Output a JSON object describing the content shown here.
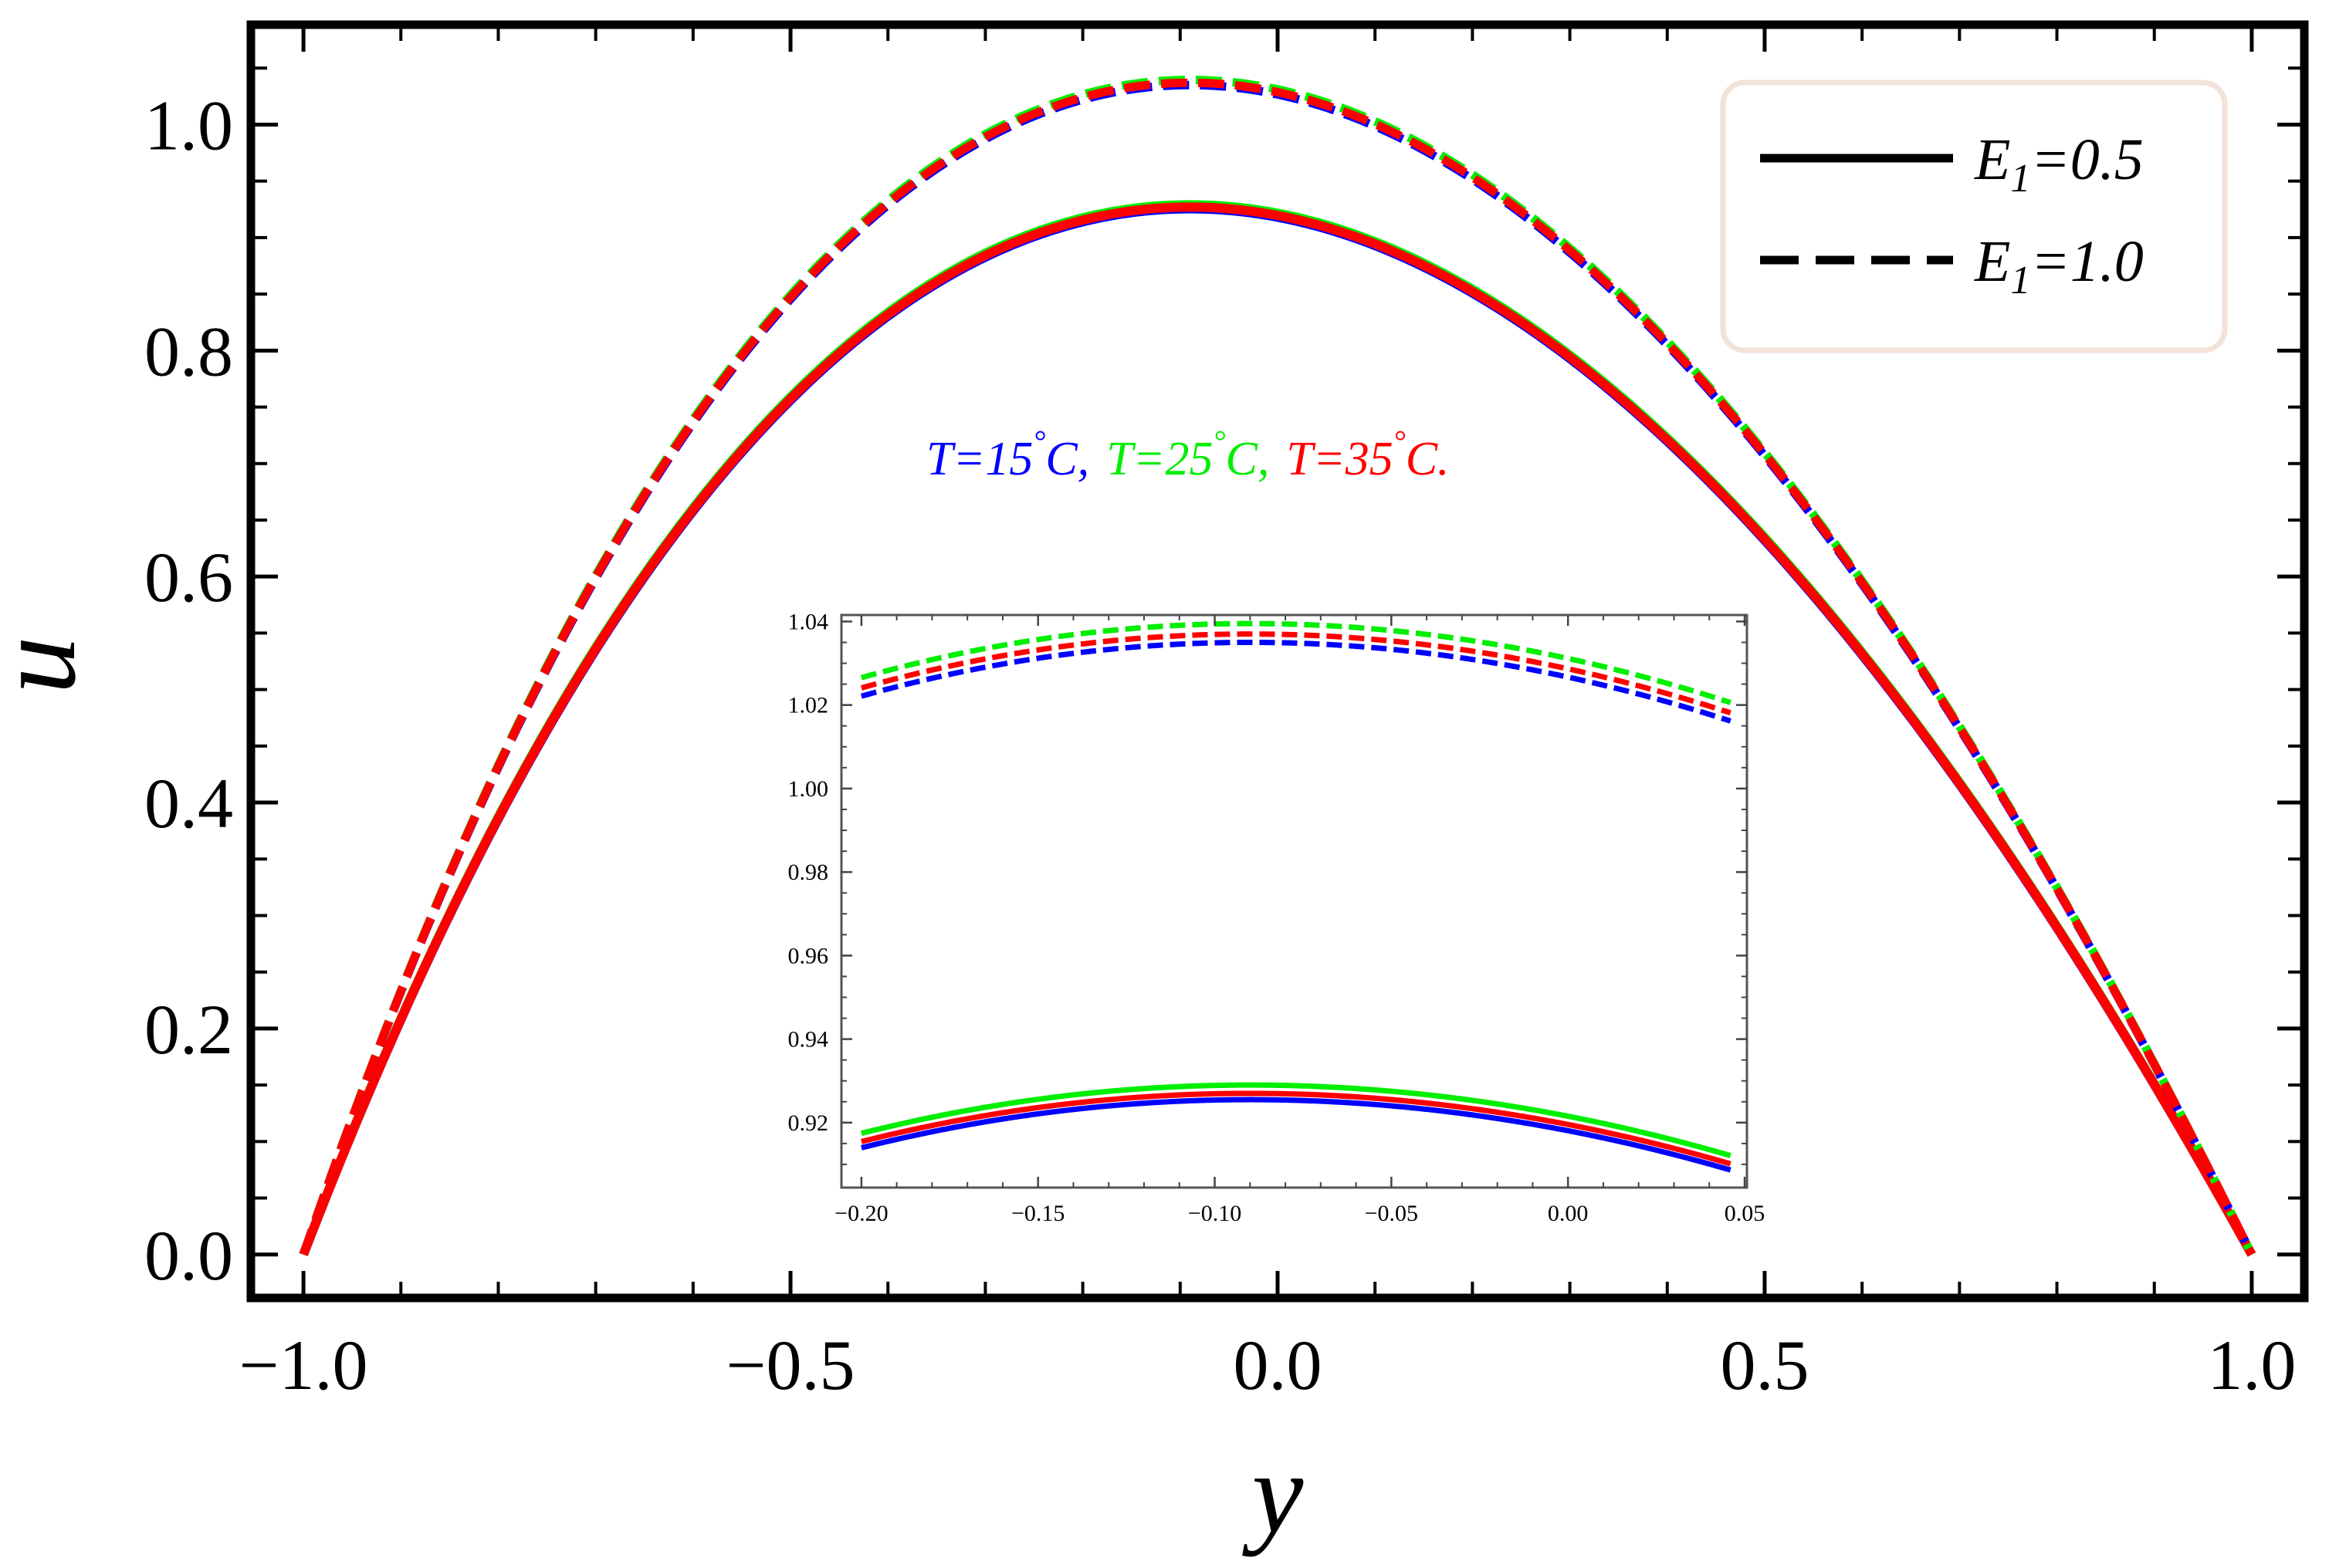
{
  "chart_data": {
    "type": "line",
    "title": "",
    "xlabel": "y",
    "ylabel": "u",
    "xlim": [
      -1.05,
      1.05
    ],
    "ylim": [
      -0.035,
      1.085
    ],
    "x_ticks": [
      -1.0,
      -0.5,
      0.0,
      0.5,
      1.0
    ],
    "x_tick_labels": [
      "−1.0",
      "−0.5",
      "0.0",
      "0.5",
      "1.0"
    ],
    "y_ticks": [
      0.0,
      0.2,
      0.4,
      0.6,
      0.8,
      1.0
    ],
    "y_tick_labels": [
      "0.0",
      "0.2",
      "0.4",
      "0.6",
      "0.8",
      "1.0"
    ],
    "grid": false,
    "curve_model": "u(y) = peak * (1 - y^2) / (1 + k*y), k chosen so the maximum sits at y ≈ -0.09",
    "peak_location_y": -0.09,
    "series": [
      {
        "name": "E1=0.5, T=15°C",
        "legend_group": "E1=0.5",
        "temperature": "T=15°C",
        "color": "#0000ff",
        "dash": "solid",
        "peak_u": 0.9255
      },
      {
        "name": "E1=0.5, T=25°C",
        "legend_group": "E1=0.5",
        "temperature": "T=25°C",
        "color": "#00ee00",
        "dash": "solid",
        "peak_u": 0.929
      },
      {
        "name": "E1=0.5, T=35°C",
        "legend_group": "E1=0.5",
        "temperature": "T=35°C",
        "color": "#ff0000",
        "dash": "solid",
        "peak_u": 0.927
      },
      {
        "name": "E1=1.0, T=15°C",
        "legend_group": "E1=1.0",
        "temperature": "T=15°C",
        "color": "#0000ff",
        "dash": "dashed",
        "peak_u": 1.035
      },
      {
        "name": "E1=1.0, T=25°C",
        "legend_group": "E1=1.0",
        "temperature": "T=25°C",
        "color": "#00ee00",
        "dash": "dashed",
        "peak_u": 1.0395
      },
      {
        "name": "E1=1.0, T=35°C",
        "legend_group": "E1=1.0",
        "temperature": "T=35°C",
        "color": "#ff0000",
        "dash": "dashed",
        "peak_u": 1.037
      }
    ],
    "legend": {
      "placement": "top-right",
      "entries": [
        {
          "label": "E",
          "subscript": "1",
          "suffix": "=0.5",
          "dash": "solid",
          "color": "#000000"
        },
        {
          "label": "E",
          "subscript": "1",
          "suffix": "=1.0",
          "dash": "dashed",
          "color": "#000000"
        }
      ]
    },
    "annotation": {
      "placement": "upper-center",
      "parts": [
        {
          "text": "T=15",
          "degree": "°",
          "unit": "C,",
          "color": "#0000ff"
        },
        {
          "text": "T=25",
          "degree": "°",
          "unit": "C,",
          "color": "#00ee00"
        },
        {
          "text": "T=35",
          "degree": "°",
          "unit": "C.",
          "color": "#ff0000"
        }
      ]
    },
    "inset": {
      "placement": "lower-center",
      "xlim": [
        -0.205,
        0.05
      ],
      "ylim": [
        0.905,
        1.041
      ],
      "x_ticks": [
        -0.2,
        -0.15,
        -0.1,
        -0.05,
        0.0,
        0.05
      ],
      "x_tick_labels": [
        "−0.20",
        "−0.15",
        "−0.10",
        "−0.05",
        "0.00",
        "0.05"
      ],
      "y_ticks": [
        0.92,
        0.94,
        0.96,
        0.98,
        1.0,
        1.02,
        1.04
      ],
      "y_tick_labels": [
        "0.92",
        "0.94",
        "0.96",
        "0.98",
        "1.00",
        "1.02",
        "1.04"
      ],
      "shows": "zoom of all six series near the peak"
    }
  }
}
